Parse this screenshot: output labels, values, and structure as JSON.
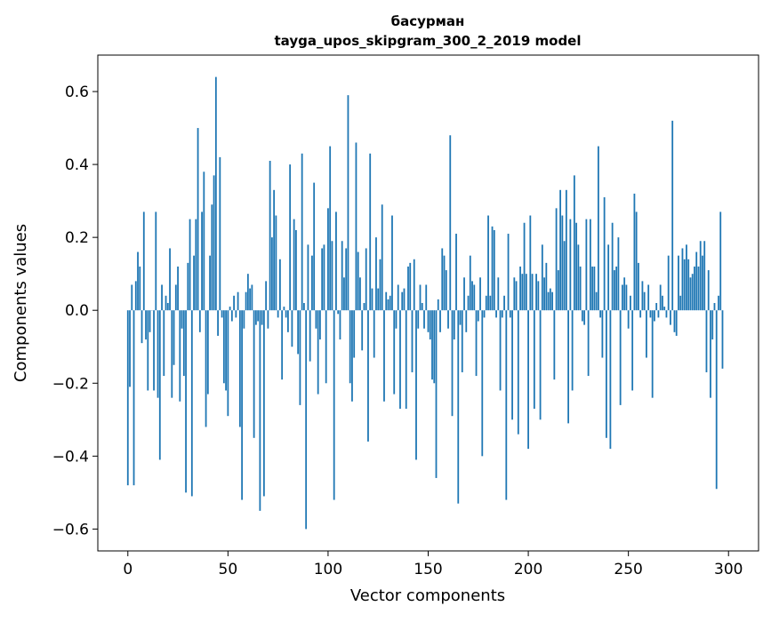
{
  "chart_data": {
    "type": "bar",
    "title": "басурман",
    "subtitle": "tayga_upos_skipgram_300_2_2019 model",
    "xlabel": "Vector components",
    "ylabel": "Components values",
    "xlim": [
      -15,
      315
    ],
    "ylim": [
      -0.66,
      0.7
    ],
    "x_ticks": [
      0,
      50,
      100,
      150,
      200,
      250,
      300
    ],
    "y_ticks": [
      -0.6,
      -0.4,
      -0.2,
      0.0,
      0.2,
      0.4,
      0.6
    ],
    "x_tick_labels": [
      "0",
      "50",
      "100",
      "150",
      "200",
      "250",
      "300"
    ],
    "y_tick_labels": [
      "−0.6",
      "−0.4",
      "−0.2",
      "0.0",
      "0.2",
      "0.4",
      "0.6"
    ],
    "bar_color": "#1f77b4",
    "grid": false,
    "values": [
      -0.48,
      -0.21,
      0.07,
      -0.48,
      0.08,
      0.16,
      0.12,
      -0.09,
      0.27,
      -0.08,
      -0.22,
      -0.06,
      0.0,
      -0.22,
      0.27,
      -0.24,
      -0.41,
      0.07,
      -0.18,
      0.04,
      0.02,
      0.17,
      -0.24,
      -0.15,
      0.07,
      0.12,
      -0.25,
      -0.05,
      -0.18,
      -0.5,
      0.13,
      0.25,
      -0.51,
      0.15,
      0.25,
      0.5,
      -0.06,
      0.27,
      0.38,
      -0.32,
      -0.23,
      0.15,
      0.29,
      0.37,
      0.64,
      -0.07,
      0.42,
      -0.02,
      -0.2,
      -0.22,
      -0.29,
      0.01,
      -0.03,
      0.04,
      -0.02,
      0.05,
      -0.32,
      -0.52,
      -0.05,
      0.05,
      0.1,
      0.06,
      0.07,
      -0.35,
      -0.04,
      -0.03,
      -0.55,
      -0.04,
      -0.51,
      0.08,
      -0.05,
      0.41,
      0.2,
      0.33,
      0.26,
      -0.02,
      0.14,
      -0.19,
      0.01,
      -0.02,
      -0.06,
      0.4,
      -0.1,
      0.25,
      0.22,
      -0.12,
      -0.26,
      0.43,
      0.02,
      -0.6,
      0.18,
      -0.14,
      0.15,
      0.35,
      -0.05,
      -0.23,
      -0.08,
      0.17,
      0.18,
      -0.2,
      0.28,
      0.45,
      0.19,
      -0.52,
      0.27,
      -0.01,
      -0.08,
      0.19,
      0.09,
      0.17,
      0.59,
      -0.2,
      -0.25,
      -0.13,
      0.46,
      0.16,
      0.09,
      -0.11,
      0.02,
      0.17,
      -0.36,
      0.43,
      0.06,
      -0.13,
      0.2,
      0.06,
      0.14,
      0.29,
      -0.25,
      0.05,
      0.03,
      0.04,
      0.26,
      -0.23,
      -0.05,
      0.07,
      -0.27,
      0.05,
      0.06,
      -0.27,
      0.12,
      0.13,
      -0.17,
      0.14,
      -0.41,
      -0.05,
      0.07,
      0.02,
      -0.05,
      0.07,
      -0.06,
      -0.08,
      -0.19,
      -0.2,
      -0.46,
      0.03,
      -0.06,
      0.17,
      0.15,
      0.11,
      -0.05,
      0.48,
      -0.29,
      -0.08,
      0.21,
      -0.53,
      -0.04,
      -0.17,
      0.09,
      -0.06,
      0.04,
      0.15,
      0.08,
      0.07,
      -0.18,
      -0.03,
      0.09,
      -0.4,
      -0.02,
      0.04,
      0.26,
      0.04,
      0.23,
      0.22,
      -0.02,
      0.09,
      -0.22,
      -0.02,
      0.04,
      -0.52,
      0.21,
      -0.02,
      -0.3,
      0.09,
      0.08,
      -0.34,
      0.12,
      0.1,
      0.24,
      0.1,
      -0.38,
      0.26,
      0.1,
      -0.27,
      0.1,
      0.08,
      -0.3,
      0.18,
      0.09,
      0.13,
      0.05,
      0.06,
      0.05,
      -0.19,
      0.28,
      0.11,
      0.33,
      0.26,
      0.19,
      0.33,
      -0.31,
      0.25,
      -0.22,
      0.37,
      0.24,
      0.18,
      0.12,
      -0.03,
      -0.04,
      0.25,
      -0.18,
      0.25,
      0.12,
      0.12,
      0.05,
      0.45,
      -0.02,
      -0.13,
      0.31,
      -0.35,
      0.18,
      -0.38,
      0.24,
      0.11,
      0.12,
      0.2,
      -0.26,
      0.07,
      0.09,
      0.07,
      -0.05,
      0.04,
      -0.22,
      0.32,
      0.27,
      0.13,
      -0.02,
      0.08,
      0.05,
      -0.13,
      0.07,
      -0.02,
      -0.24,
      -0.03,
      0.02,
      -0.02,
      0.07,
      0.04,
      0.01,
      -0.02,
      0.15,
      -0.04,
      0.52,
      -0.06,
      -0.07,
      0.15,
      0.04,
      0.17,
      0.14,
      0.18,
      0.14,
      0.09,
      0.1,
      0.12,
      0.16,
      0.12,
      0.19,
      0.15,
      0.19,
      -0.17,
      0.11,
      -0.24,
      -0.08,
      0.02,
      -0.49,
      0.04,
      0.27,
      -0.16
    ]
  }
}
